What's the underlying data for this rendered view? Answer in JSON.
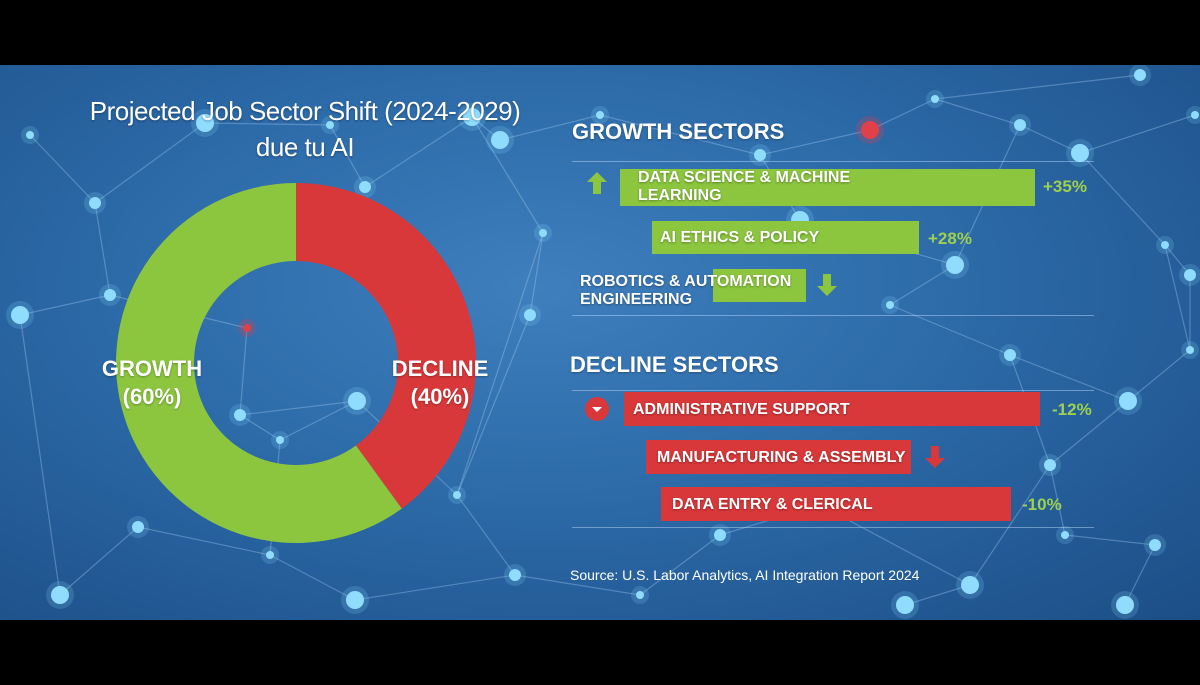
{
  "chart_data": [
    {
      "type": "pie",
      "title_lines": [
        "Projected Job Sector Shift (2024-2029)",
        "due tu AI"
      ],
      "slices": [
        {
          "label": "GROWTH",
          "value": 60,
          "value_text": "(60%)",
          "color": "#8cc63f"
        },
        {
          "label": "DECLINE",
          "value": 40,
          "value_text": "(40%)",
          "color": "#d9383a"
        }
      ]
    },
    {
      "type": "bar",
      "groups": [
        {
          "heading": "GROWTH SECTORS",
          "color": "#8cc63f",
          "items": [
            {
              "label_lines": [
                "DATA SCIENCE & MACHINE",
                "LEARNING"
              ],
              "value": 35,
              "value_text": "+35%",
              "icon": "arrow-up-icon"
            },
            {
              "label_lines": [
                "AI ETHICS & POLICY"
              ],
              "value": 28,
              "value_text": "+28%",
              "icon": null
            },
            {
              "label_lines": [
                "ROBOTICS & AUTOMATION",
                "ENGINEERING"
              ],
              "value": null,
              "value_text": "",
              "icon": "arrow-down-icon"
            }
          ]
        },
        {
          "heading": "DECLINE SECTORS",
          "color": "#d9383a",
          "items": [
            {
              "label_lines": [
                "ADMINISTRATIVE SUPPORT"
              ],
              "value": -12,
              "value_text": "-12%",
              "icon": "chevron-down-circle-icon"
            },
            {
              "label_lines": [
                "MANUFACTURING & ASSEMBLY"
              ],
              "value": null,
              "value_text": "",
              "icon": "arrow-down-icon"
            },
            {
              "label_lines": [
                "DATA ENTRY & CLERICAL"
              ],
              "value": -10,
              "value_text": "-10%",
              "icon": null
            }
          ]
        }
      ]
    }
  ],
  "source": "Source: U.S. Labor Analytics, AI Integration Report 2024"
}
